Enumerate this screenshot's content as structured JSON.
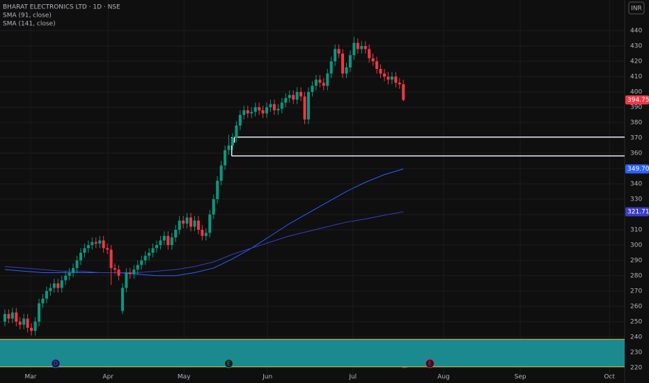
{
  "chart_data": {
    "type": "candlestick",
    "title": "BHARAT ELECTRONICS LTD · 1D · NSE",
    "currency": "INR",
    "up_color": "#089981",
    "down_color": "#f23645",
    "xlim": [
      -1.28,
      163.3
    ],
    "ylim": [
      214.5,
      460
    ],
    "xticks": [
      {
        "value": 6.8,
        "label": "Mar"
      },
      {
        "value": 27.2,
        "label": "Apr"
      },
      {
        "value": 47.2,
        "label": "May"
      },
      {
        "value": 69.2,
        "label": "Jun"
      },
      {
        "value": 91.7,
        "label": "Jul"
      },
      {
        "value": 115.6,
        "label": "Aug"
      },
      {
        "value": 135.8,
        "label": "Sep"
      },
      {
        "value": 159.3,
        "label": "Oct"
      }
    ],
    "yticks": [
      220,
      230,
      240,
      250,
      260,
      270,
      280,
      290,
      300,
      310,
      320,
      330,
      340,
      350,
      360,
      370,
      380,
      390,
      400,
      410,
      420,
      430,
      440
    ],
    "grid": true,
    "x": [
      0,
      1,
      2,
      3,
      4,
      5,
      6,
      7,
      8,
      9,
      10,
      11,
      12,
      13,
      14,
      15,
      16,
      17,
      18,
      19,
      20,
      21,
      22,
      23,
      24,
      25,
      26,
      27,
      28,
      29,
      30,
      31,
      32,
      33,
      34,
      35,
      36,
      37,
      38,
      39,
      40,
      41,
      42,
      43,
      44,
      45,
      46,
      47,
      48,
      49,
      50,
      51,
      52,
      53,
      54,
      55,
      56,
      57,
      58,
      59,
      60,
      61,
      62,
      63,
      64,
      65,
      66,
      67,
      68,
      69,
      70,
      71,
      72,
      73,
      74,
      75,
      76,
      77,
      78,
      79,
      80,
      81,
      82,
      83,
      84,
      85,
      86,
      87,
      88,
      89,
      90,
      91,
      92,
      93,
      94,
      95,
      96,
      97,
      98,
      99,
      100,
      101,
      102,
      103,
      104,
      105
    ],
    "open": [
      250,
      255,
      252,
      256,
      250,
      248,
      252,
      246,
      244,
      250,
      262,
      265,
      270,
      272,
      275,
      272,
      277,
      280,
      282,
      285,
      290,
      295,
      298,
      300,
      302,
      301,
      303,
      298,
      297,
      285,
      284,
      257,
      272,
      282,
      281,
      284,
      287,
      290,
      293,
      295,
      298,
      300,
      303,
      306,
      300,
      305,
      310,
      316,
      314,
      318,
      312,
      316,
      310,
      306,
      308,
      320,
      330,
      342,
      352,
      362,
      365,
      370,
      378,
      385,
      388,
      386,
      387,
      390,
      388,
      386,
      390,
      392,
      388,
      389,
      393,
      396,
      398,
      395,
      400,
      397,
      382,
      400,
      404,
      408,
      406,
      404,
      412,
      420,
      428,
      425,
      412,
      416,
      424,
      432,
      428,
      430,
      428,
      422,
      420,
      415,
      412,
      410,
      408,
      410,
      406,
      405
    ],
    "high": [
      258,
      258,
      259,
      259,
      253,
      255,
      255,
      249,
      253,
      265,
      268,
      273,
      275,
      278,
      278,
      280,
      283,
      285,
      288,
      293,
      298,
      301,
      303,
      305,
      305,
      306,
      306,
      301,
      300,
      288,
      287,
      275,
      285,
      285,
      287,
      290,
      293,
      296,
      298,
      301,
      303,
      306,
      309,
      309,
      308,
      313,
      319,
      319,
      321,
      321,
      319,
      319,
      313,
      311,
      323,
      333,
      345,
      355,
      365,
      372,
      373,
      381,
      388,
      391,
      391,
      390,
      393,
      393,
      391,
      393,
      395,
      395,
      392,
      396,
      399,
      401,
      401,
      403,
      403,
      400,
      403,
      407,
      411,
      411,
      409,
      415,
      423,
      431,
      431,
      428,
      419,
      427,
      436,
      435,
      433,
      433,
      431,
      425,
      423,
      418,
      415,
      413,
      413,
      413,
      409,
      408
    ],
    "low": [
      247,
      249,
      249,
      247,
      245,
      245,
      243,
      241,
      241,
      247,
      259,
      262,
      267,
      269,
      269,
      269,
      274,
      277,
      279,
      282,
      287,
      292,
      295,
      297,
      298,
      298,
      295,
      294,
      274,
      281,
      277,
      255,
      269,
      278,
      278,
      281,
      284,
      287,
      290,
      292,
      295,
      297,
      300,
      297,
      297,
      302,
      307,
      311,
      311,
      309,
      309,
      307,
      303,
      303,
      305,
      317,
      327,
      339,
      349,
      359,
      362,
      367,
      375,
      382,
      383,
      383,
      384,
      385,
      383,
      383,
      387,
      385,
      385,
      386,
      390,
      393,
      392,
      392,
      394,
      379,
      379,
      397,
      401,
      403,
      401,
      401,
      409,
      417,
      422,
      409,
      409,
      413,
      421,
      425,
      425,
      425,
      419,
      417,
      412,
      409,
      407,
      405,
      405,
      403,
      402,
      394
    ],
    "close": [
      255,
      252,
      256,
      250,
      248,
      252,
      246,
      244,
      250,
      262,
      265,
      270,
      272,
      275,
      272,
      277,
      280,
      282,
      285,
      290,
      295,
      298,
      300,
      302,
      301,
      303,
      298,
      297,
      285,
      284,
      280,
      272,
      282,
      281,
      284,
      287,
      290,
      293,
      295,
      298,
      300,
      303,
      306,
      300,
      305,
      310,
      316,
      314,
      318,
      312,
      316,
      310,
      306,
      308,
      320,
      330,
      342,
      352,
      362,
      365,
      370,
      378,
      385,
      388,
      386,
      387,
      390,
      388,
      386,
      390,
      392,
      388,
      389,
      393,
      396,
      398,
      395,
      400,
      397,
      382,
      400,
      404,
      408,
      406,
      404,
      412,
      420,
      428,
      425,
      412,
      416,
      424,
      432,
      428,
      430,
      428,
      422,
      420,
      415,
      412,
      410,
      408,
      410,
      406,
      405,
      394.75
    ],
    "overlays": [
      {
        "name": "SMA (91, close)",
        "color": "#2962ff",
        "x": [
          0,
          5,
          10,
          15,
          20,
          25,
          30,
          35,
          40,
          45,
          50,
          55,
          60,
          65,
          70,
          75,
          80,
          85,
          90,
          95,
          100,
          105
        ],
        "values": [
          284,
          283,
          282,
          282,
          282,
          282,
          282,
          281,
          280,
          280,
          282,
          285,
          291,
          298,
          306,
          314,
          321,
          328,
          335,
          341,
          346,
          349.7
        ],
        "value_label": "349.70"
      },
      {
        "name": "SMA (141, close)",
        "color": "#3c3cc8",
        "x": [
          0,
          5,
          10,
          15,
          20,
          25,
          30,
          35,
          40,
          45,
          50,
          55,
          60,
          65,
          70,
          75,
          80,
          85,
          90,
          95,
          100,
          105
        ],
        "values": [
          286,
          285,
          284,
          283,
          283,
          282,
          282,
          282,
          283,
          284,
          286,
          289,
          294,
          298,
          302,
          306,
          309,
          312,
          315,
          317,
          319.5,
          321.71
        ],
        "value_label": "321.71"
      }
    ],
    "levels": [
      370.5,
      358.2
    ],
    "level_start": 60.5,
    "zone": {
      "low": 220.5,
      "high": 238.5,
      "color": "#1a8a8e",
      "border": "#e0c040"
    },
    "events": [
      {
        "x": 13.4,
        "label": "D",
        "color": "#2962ff"
      },
      {
        "x": 59,
        "label": "E",
        "color": "#089981"
      },
      {
        "x": 112,
        "label": "E",
        "color": "#e91e63"
      }
    ]
  }
}
